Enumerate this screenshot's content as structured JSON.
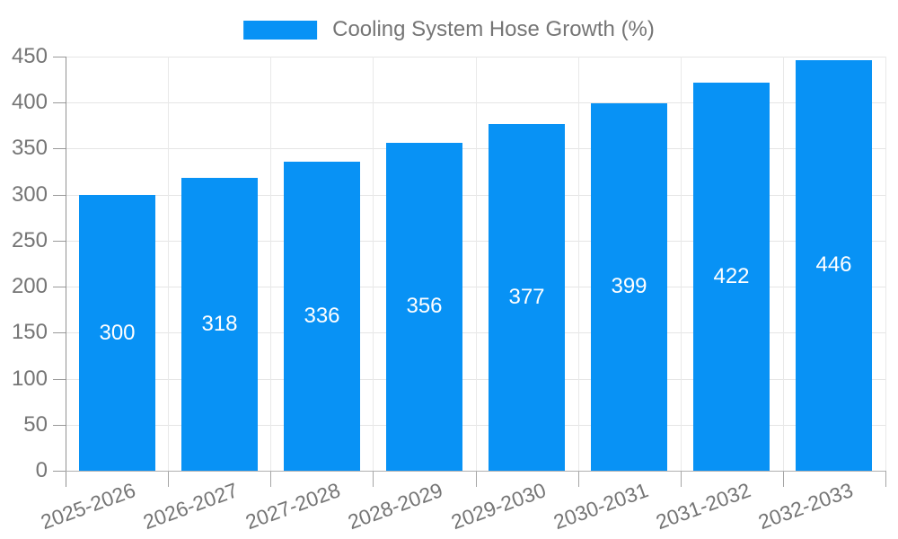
{
  "legend": {
    "label": "Cooling System Hose Growth (%)"
  },
  "chart_data": {
    "type": "bar",
    "title": "",
    "series_name": "Cooling System Hose Growth (%)",
    "categories": [
      "2025-2026",
      "2026-2027",
      "2027-2028",
      "2028-2029",
      "2029-2030",
      "2030-2031",
      "2031-2032",
      "2032-2033"
    ],
    "values": [
      300,
      318,
      336,
      356,
      377,
      399,
      422,
      446
    ],
    "value_labels": [
      "300",
      "318",
      "336",
      "356",
      "377",
      "399",
      "422",
      "446"
    ],
    "ylabel": "",
    "xlabel": "",
    "ylim": [
      0,
      450
    ],
    "ytick_step": 50,
    "yticks": [
      0,
      50,
      100,
      150,
      200,
      250,
      300,
      350,
      400,
      450
    ],
    "grid": "on",
    "legend_position": "top-center",
    "x_label_rotation_deg": -20,
    "colors": {
      "bar": "#0892f5",
      "bar_value_label": "#ffffff",
      "axis_text": "#757575",
      "gridline": "#e5e5e5",
      "y_axis_line": "#919191",
      "x_axis_line": "#b0b0b0",
      "background": "#ffffff"
    }
  }
}
